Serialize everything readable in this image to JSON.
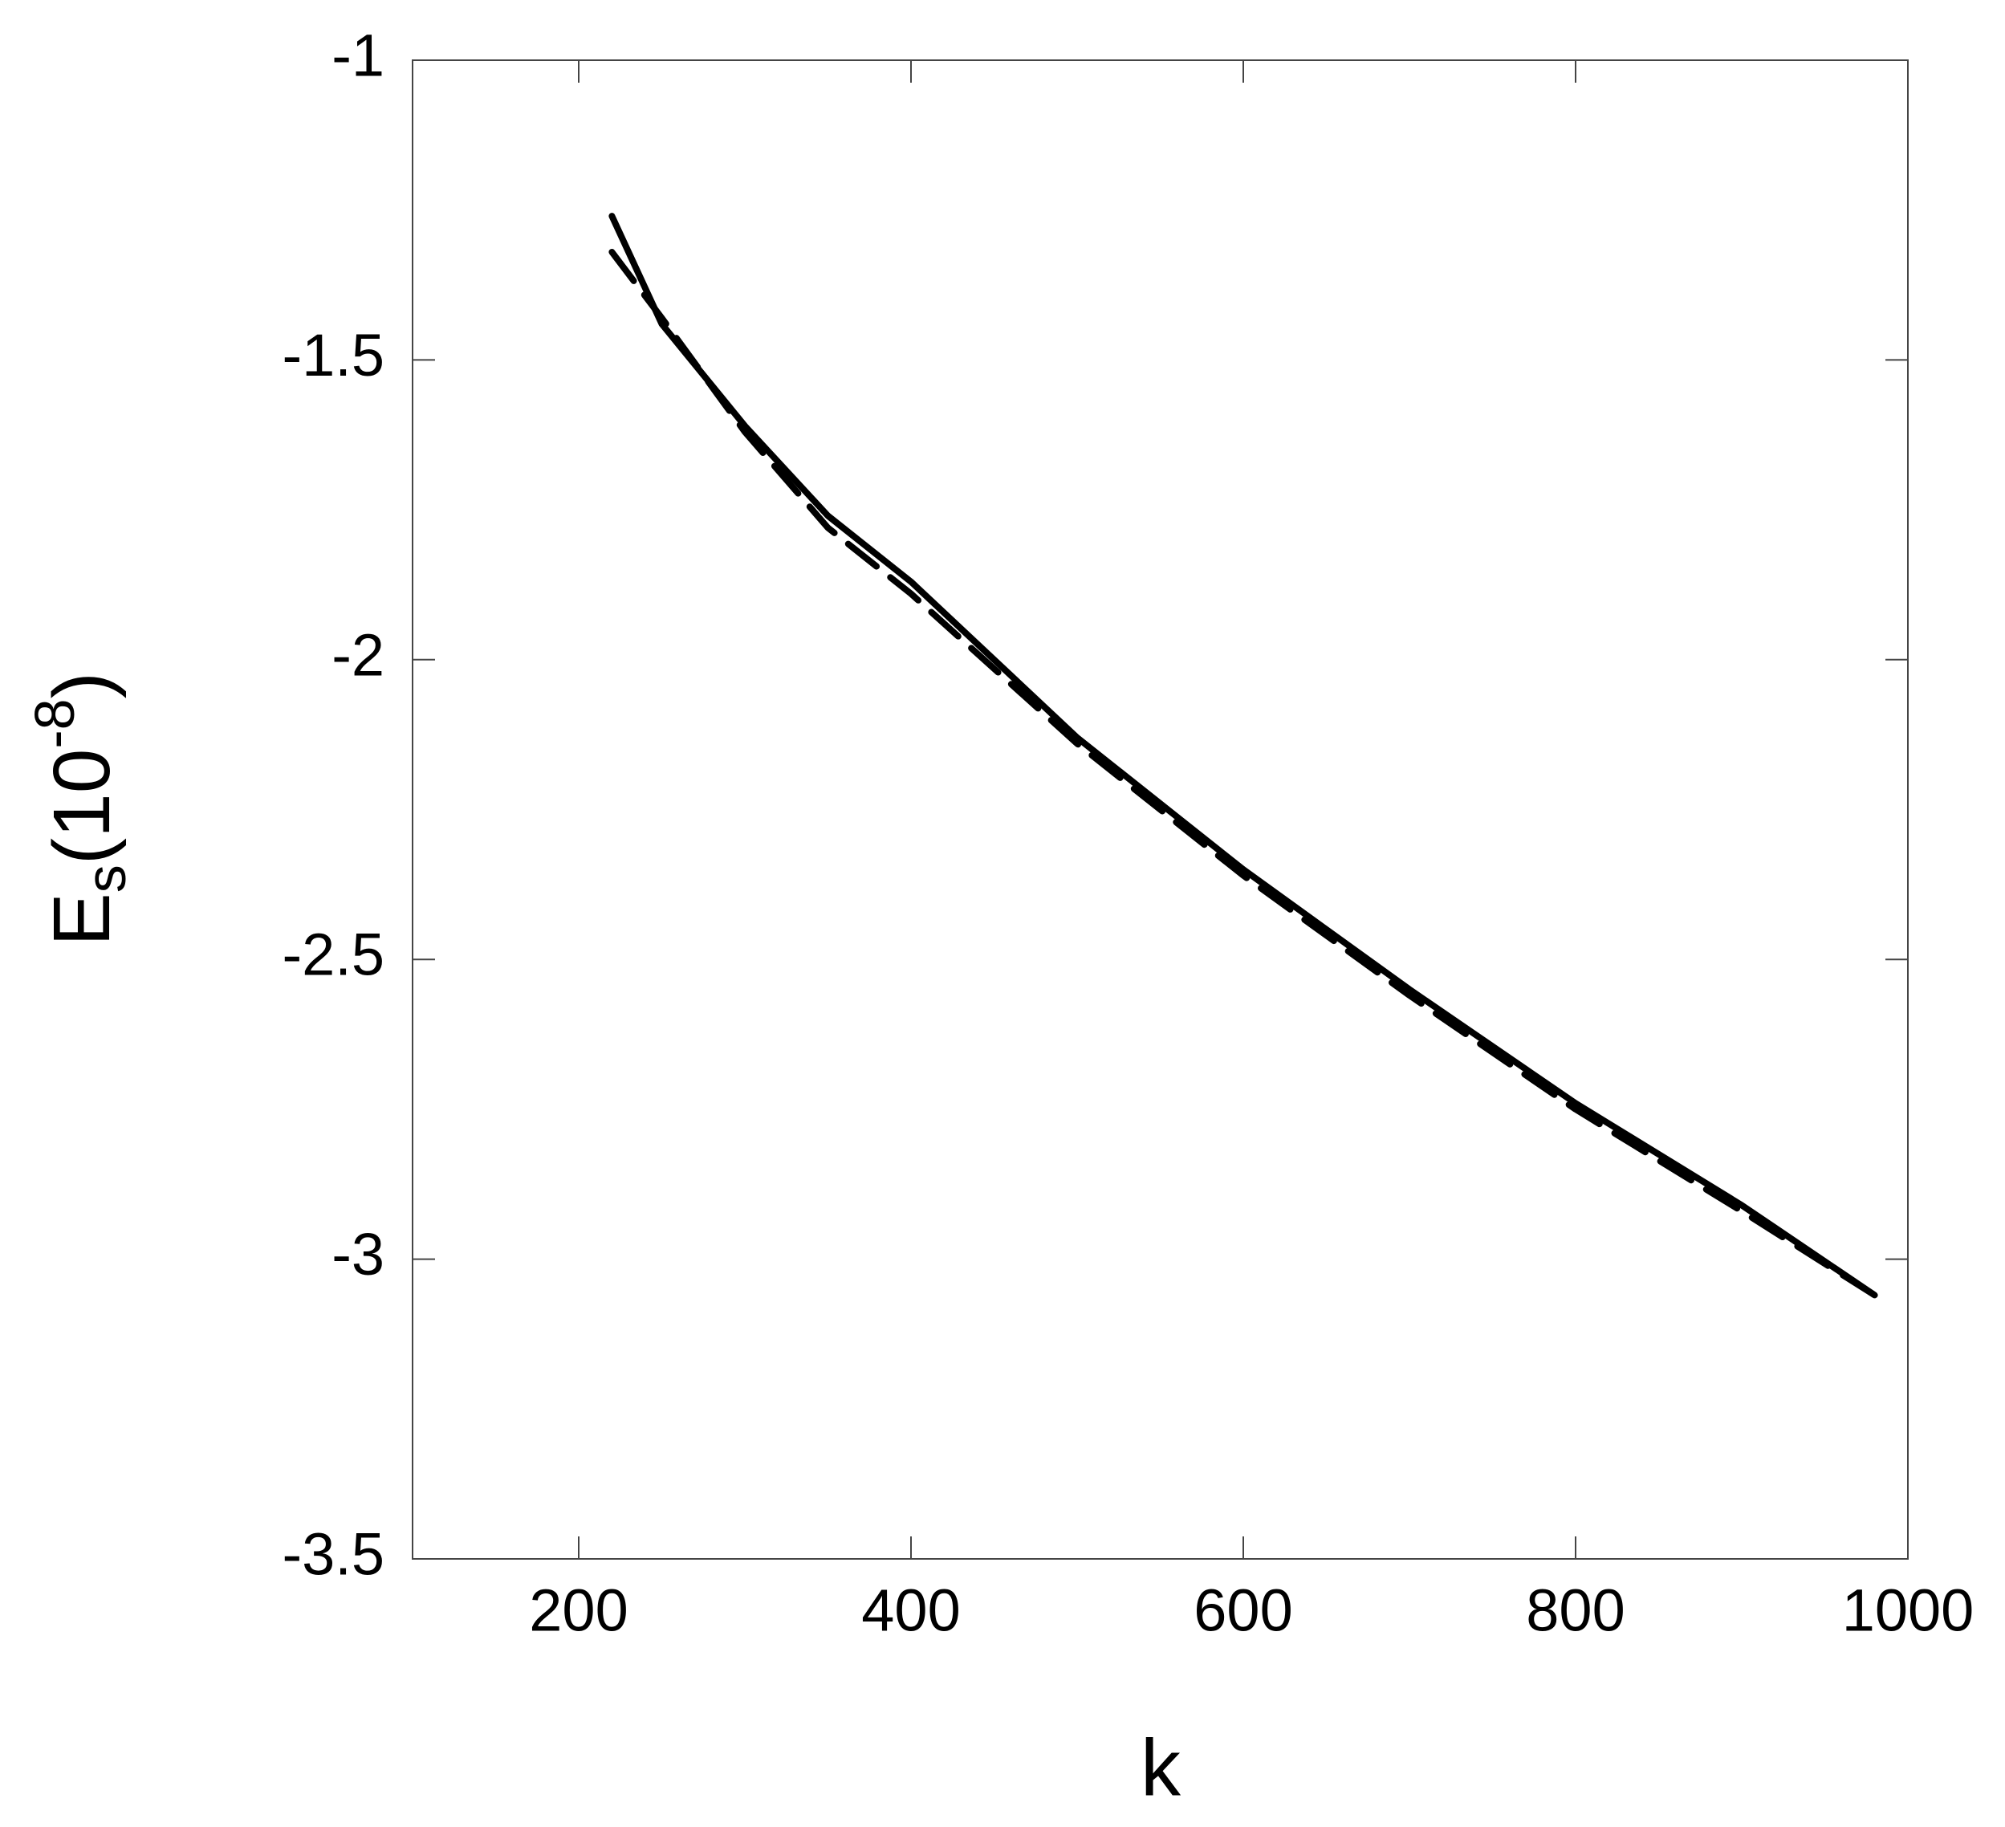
{
  "chart_data": {
    "type": "line",
    "xlabel": "k",
    "ylabel": {
      "main": "E",
      "sub": "s",
      "open": "(10",
      "sup": "-8",
      "close": ")"
    },
    "x": [
      220,
      250,
      300,
      350,
      400,
      500,
      600,
      700,
      800,
      900,
      980
    ],
    "series": [
      {
        "color": "#000000",
        "dashed": false,
        "values": [
          -1.26,
          -1.44,
          -1.61,
          -1.76,
          -1.87,
          -2.13,
          -2.35,
          -2.55,
          -2.74,
          -2.91,
          -3.06
        ]
      },
      {
        "color": "#000000",
        "dashed": true,
        "values": [
          -1.32,
          -1.43,
          -1.62,
          -1.78,
          -1.89,
          -2.14,
          -2.36,
          -2.56,
          -2.75,
          -2.92,
          -3.06
        ]
      }
    ],
    "xlim": [
      100,
      1000
    ],
    "xticks": [
      200,
      400,
      600,
      800,
      1000
    ],
    "ylim": [
      -3.5,
      -1
    ],
    "yticks": [
      -3.5,
      -3,
      -2.5,
      -2,
      -1.5,
      -1
    ],
    "grid": false
  }
}
